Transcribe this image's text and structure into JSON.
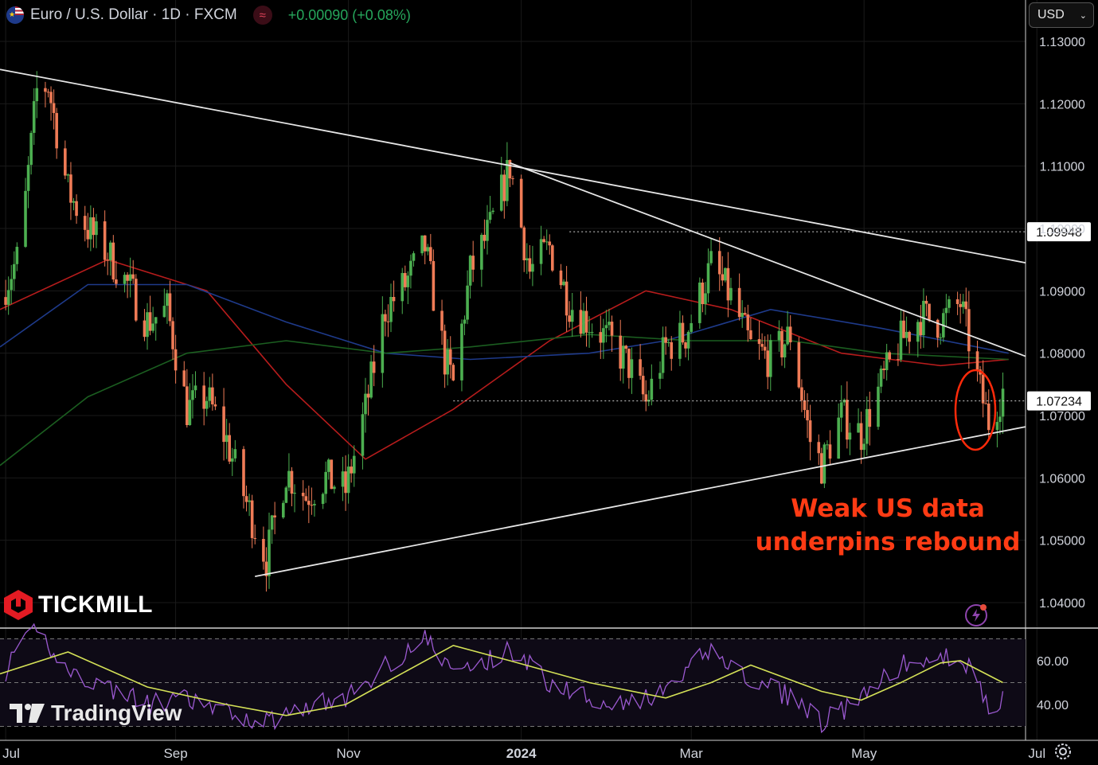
{
  "header": {
    "symbol_title": "Euro / U.S. Dollar · 1D · FXCM",
    "change_text": "+0.00090 (+0.08%)",
    "indicator_icon": "approx-icon",
    "flag_icon": "eu-us-flag-icon"
  },
  "currency_selector": {
    "value": "USD",
    "icon": "chevron-down-icon"
  },
  "branding": {
    "broker": "TICKMILL",
    "platform": "TradingView"
  },
  "annotation": {
    "line1": "Weak US data",
    "line2": "underpins rebound",
    "color": "#ff3b14"
  },
  "colors": {
    "up": "#4caf50",
    "down": "#ef7b56",
    "ma_red": "#b71c1c",
    "ma_blue": "#1e3a8a",
    "ma_green": "#1b5e20",
    "rsi": "#9b59d0",
    "rsi_ma": "#d4e157"
  },
  "chart_data": [
    {
      "type": "candlestick",
      "title": "Euro / U.S. Dollar · 1D · FXCM",
      "x_ticks": [
        "Jul",
        "Sep",
        "Nov",
        "2024",
        "Mar",
        "May",
        "Jul"
      ],
      "y_ticks": [
        "1.13000",
        "1.12000",
        "1.11000",
        "1.10000",
        "1.09000",
        "1.08000",
        "1.07000",
        "1.06000",
        "1.05000",
        "1.04000"
      ],
      "ylim": [
        1.0365,
        1.1363
      ],
      "price_labels": [
        "1.09948",
        "1.07234"
      ],
      "x_dates": [
        "2023-07-03",
        "2023-09-01",
        "2023-11-01",
        "2024-01-01",
        "2024-03-01",
        "2024-05-01",
        "2024-07-01"
      ],
      "close_path": [
        [
          "2023-07-01",
          1.089
        ],
        [
          "2023-07-08",
          1.096
        ],
        [
          "2023-07-14",
          1.122
        ],
        [
          "2023-07-18",
          1.123
        ],
        [
          "2023-07-25",
          1.106
        ],
        [
          "2023-08-01",
          1.1
        ],
        [
          "2023-08-08",
          1.096
        ],
        [
          "2023-08-15",
          1.091
        ],
        [
          "2023-08-22",
          1.085
        ],
        [
          "2023-08-29",
          1.087
        ],
        [
          "2023-09-05",
          1.071
        ],
        [
          "2023-09-12",
          1.073
        ],
        [
          "2023-09-19",
          1.066
        ],
        [
          "2023-09-26",
          1.056
        ],
        [
          "2023-10-03",
          1.047
        ],
        [
          "2023-10-10",
          1.061
        ],
        [
          "2023-10-17",
          1.057
        ],
        [
          "2023-10-24",
          1.06
        ],
        [
          "2023-10-31",
          1.058
        ],
        [
          "2023-11-07",
          1.071
        ],
        [
          "2023-11-14",
          1.087
        ],
        [
          "2023-11-21",
          1.091
        ],
        [
          "2023-11-28",
          1.097
        ],
        [
          "2023-12-05",
          1.079
        ],
        [
          "2023-12-08",
          1.075
        ],
        [
          "2023-12-14",
          1.093
        ],
        [
          "2023-12-21",
          1.1
        ],
        [
          "2023-12-28",
          1.11
        ],
        [
          "2024-01-04",
          1.093
        ],
        [
          "2024-01-11",
          1.097
        ],
        [
          "2024-01-18",
          1.088
        ],
        [
          "2024-01-25",
          1.085
        ],
        [
          "2024-02-01",
          1.082
        ],
        [
          "2024-02-08",
          1.078
        ],
        [
          "2024-02-14",
          1.072
        ],
        [
          "2024-02-21",
          1.081
        ],
        [
          "2024-02-28",
          1.083
        ],
        [
          "2024-03-08",
          1.094
        ],
        [
          "2024-03-15",
          1.089
        ],
        [
          "2024-03-22",
          1.081
        ],
        [
          "2024-03-29",
          1.079
        ],
        [
          "2024-04-05",
          1.083
        ],
        [
          "2024-04-12",
          1.066
        ],
        [
          "2024-04-16",
          1.062
        ],
        [
          "2024-04-23",
          1.07
        ],
        [
          "2024-04-30",
          1.067
        ],
        [
          "2024-05-07",
          1.075
        ],
        [
          "2024-05-14",
          1.082
        ],
        [
          "2024-05-21",
          1.086
        ],
        [
          "2024-05-28",
          1.085
        ],
        [
          "2024-06-04",
          1.088
        ],
        [
          "2024-06-11",
          1.074
        ],
        [
          "2024-06-14",
          1.069
        ],
        [
          "2024-06-19",
          1.074
        ]
      ],
      "moving_averages": [
        {
          "color": "red",
          "path": [
            [
              "2023-07-01",
              1.087
            ],
            [
              "2023-08-08",
              1.095
            ],
            [
              "2023-09-12",
              1.09
            ],
            [
              "2023-10-10",
              1.075
            ],
            [
              "2023-11-07",
              1.063
            ],
            [
              "2023-12-08",
              1.071
            ],
            [
              "2024-01-11",
              1.082
            ],
            [
              "2024-02-14",
              1.09
            ],
            [
              "2024-03-15",
              1.087
            ],
            [
              "2024-04-23",
              1.08
            ],
            [
              "2024-05-28",
              1.078
            ],
            [
              "2024-06-21",
              1.079
            ]
          ]
        },
        {
          "color": "blue",
          "path": [
            [
              "2023-07-01",
              1.081
            ],
            [
              "2023-08-01",
              1.091
            ],
            [
              "2023-09-05",
              1.091
            ],
            [
              "2023-10-10",
              1.085
            ],
            [
              "2023-11-14",
              1.08
            ],
            [
              "2023-12-14",
              1.079
            ],
            [
              "2024-01-25",
              1.08
            ],
            [
              "2024-02-21",
              1.082
            ],
            [
              "2024-03-29",
              1.087
            ],
            [
              "2024-05-07",
              1.084
            ],
            [
              "2024-06-21",
              1.08
            ]
          ]
        },
        {
          "color": "green",
          "path": [
            [
              "2023-07-01",
              1.062
            ],
            [
              "2023-08-01",
              1.073
            ],
            [
              "2023-09-05",
              1.08
            ],
            [
              "2023-10-10",
              1.082
            ],
            [
              "2023-11-14",
              1.08
            ],
            [
              "2023-12-14",
              1.081
            ],
            [
              "2024-01-25",
              1.083
            ],
            [
              "2024-03-01",
              1.082
            ],
            [
              "2024-04-05",
              1.082
            ],
            [
              "2024-05-07",
              1.08
            ],
            [
              "2024-06-21",
              1.079
            ]
          ]
        }
      ],
      "trendlines": [
        {
          "from": [
            "2023-07-01",
            1.1255
          ],
          "to": [
            "2024-06-27",
            1.0945
          ]
        },
        {
          "from": [
            "2023-12-28",
            1.1105
          ],
          "to": [
            "2024-06-27",
            1.0795
          ]
        },
        {
          "from": [
            "2023-09-29",
            1.0442
          ],
          "to": [
            "2024-06-27",
            1.0682
          ]
        }
      ],
      "horizontal_levels": [
        {
          "value": 1.09948,
          "from": "2024-01-18",
          "style": "dotted"
        },
        {
          "value": 1.07234,
          "from": "2023-12-08",
          "style": "dotted"
        }
      ]
    },
    {
      "type": "line",
      "title": "",
      "y_ticks": [
        "60.00",
        "40.00"
      ],
      "ylim": [
        30,
        75
      ],
      "levels": [
        70,
        50,
        30
      ],
      "series": [
        {
          "path": [
            [
              "2023-07-01",
              52
            ],
            [
              "2023-07-14",
              75
            ],
            [
              "2023-07-25",
              55
            ],
            [
              "2023-08-08",
              48
            ],
            [
              "2023-08-22",
              40
            ],
            [
              "2023-09-05",
              42
            ],
            [
              "2023-09-19",
              36
            ],
            [
              "2023-10-03",
              32
            ],
            [
              "2023-10-17",
              40
            ],
            [
              "2023-10-31",
              42
            ],
            [
              "2023-11-14",
              58
            ],
            [
              "2023-11-28",
              70
            ],
            [
              "2023-12-08",
              55
            ],
            [
              "2023-12-21",
              60
            ],
            [
              "2023-12-28",
              66
            ],
            [
              "2024-01-11",
              50
            ],
            [
              "2024-01-25",
              44
            ],
            [
              "2024-02-08",
              40
            ],
            [
              "2024-02-21",
              45
            ],
            [
              "2024-03-08",
              66
            ],
            [
              "2024-03-22",
              50
            ],
            [
              "2024-04-05",
              44
            ],
            [
              "2024-04-16",
              32
            ],
            [
              "2024-04-30",
              42
            ],
            [
              "2024-05-14",
              58
            ],
            [
              "2024-05-28",
              60
            ],
            [
              "2024-06-04",
              64
            ],
            [
              "2024-06-14",
              38
            ],
            [
              "2024-06-19",
              44
            ]
          ]
        },
        {
          "path": [
            [
              "2023-07-01",
              54
            ],
            [
              "2023-07-25",
              64
            ],
            [
              "2023-08-22",
              48
            ],
            [
              "2023-09-19",
              40
            ],
            [
              "2023-10-10",
              35
            ],
            [
              "2023-10-31",
              40
            ],
            [
              "2023-11-14",
              50
            ],
            [
              "2023-12-08",
              67
            ],
            [
              "2023-12-28",
              60
            ],
            [
              "2024-01-25",
              50
            ],
            [
              "2024-02-21",
              43
            ],
            [
              "2024-03-08",
              50
            ],
            [
              "2024-03-22",
              58
            ],
            [
              "2024-04-16",
              46
            ],
            [
              "2024-04-30",
              42
            ],
            [
              "2024-05-14",
              50
            ],
            [
              "2024-05-28",
              59
            ],
            [
              "2024-06-04",
              60
            ],
            [
              "2024-06-19",
              50
            ]
          ]
        }
      ]
    }
  ]
}
